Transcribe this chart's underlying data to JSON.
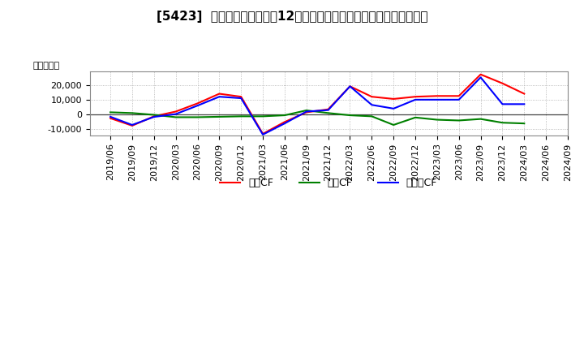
{
  "title": "[5423]  キャッシュフローの12か月移動合計の対前年同期増減額の推移",
  "ylabel": "（百万円）",
  "background_color": "#ffffff",
  "plot_bg_color": "#ffffff",
  "grid_color": "#aaaaaa",
  "ylim": [
    -14000,
    29000
  ],
  "yticks": [
    -10000,
    0,
    10000,
    20000
  ],
  "dates": [
    "2019/06",
    "2019/09",
    "2019/12",
    "2020/03",
    "2020/06",
    "2020/09",
    "2020/12",
    "2021/03",
    "2021/06",
    "2021/09",
    "2021/12",
    "2022/03",
    "2022/06",
    "2022/09",
    "2022/12",
    "2023/03",
    "2023/06",
    "2023/09",
    "2023/12",
    "2024/03",
    "2024/06",
    "2024/09"
  ],
  "eigyo_cf": [
    -2500,
    -7500,
    -1200,
    2000,
    7500,
    14000,
    12000,
    -13000,
    -5000,
    1500,
    3500,
    19000,
    12000,
    10500,
    12000,
    12500,
    12500,
    27000,
    21000,
    14000,
    null,
    null
  ],
  "toshi_cf": [
    1500,
    1000,
    -200,
    -1800,
    -1800,
    -1500,
    -1200,
    -1200,
    -500,
    2800,
    1000,
    -500,
    -1200,
    -7000,
    -2000,
    -3500,
    -4000,
    -3000,
    -5500,
    -6000,
    null,
    null
  ],
  "free_cf": [
    -1500,
    -7000,
    -1600,
    300,
    6000,
    12000,
    11000,
    -13500,
    -6000,
    2000,
    3000,
    19000,
    6500,
    4000,
    10000,
    10000,
    10000,
    25000,
    7000,
    7000,
    null,
    null
  ],
  "eigyo_color": "#ff0000",
  "toshi_color": "#008000",
  "free_color": "#0000ff",
  "line_width": 1.5,
  "legend_labels": [
    "営業CF",
    "投資CF",
    "フリーCF"
  ],
  "title_fontsize": 11,
  "tick_fontsize": 8,
  "ylabel_fontsize": 8
}
